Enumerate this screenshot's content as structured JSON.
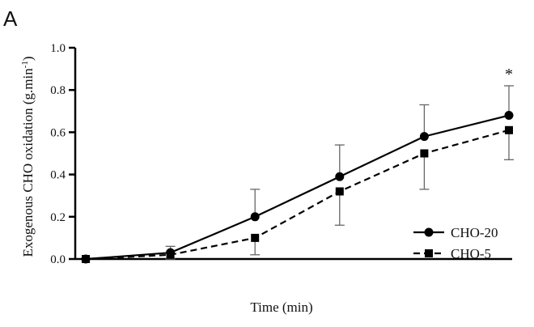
{
  "panel_label": "A",
  "chart_data": {
    "type": "line",
    "xlabel": "Time (min)",
    "ylabel_main": "Exogenous CHO oxidation (g.min",
    "ylabel_sup": "-1",
    "ylabel_tail": ")",
    "ylim": [
      0,
      1.0
    ],
    "yticks": [
      "0.0",
      "0.2",
      "0.4",
      "0.6",
      "0.8",
      "1.0"
    ],
    "x": [
      0,
      1,
      2,
      3,
      4,
      5
    ],
    "series": [
      {
        "name": "CHO-20",
        "marker": "circle",
        "linestyle": "solid",
        "color": "#000000",
        "values": [
          0.0,
          0.03,
          0.2,
          0.39,
          0.58,
          0.68
        ],
        "error_upper": [
          0.0,
          0.06,
          0.33,
          0.54,
          0.73,
          0.82
        ],
        "error_lower": [
          0.0,
          0.03,
          0.2,
          0.39,
          0.58,
          0.68
        ]
      },
      {
        "name": "CHO-5",
        "marker": "square",
        "linestyle": "dashed",
        "color": "#000000",
        "values": [
          0.0,
          0.02,
          0.1,
          0.32,
          0.5,
          0.61
        ],
        "error_upper": [
          0.0,
          0.02,
          0.1,
          0.32,
          0.5,
          0.61
        ],
        "error_lower": [
          0.0,
          0.0,
          0.02,
          0.16,
          0.33,
          0.47
        ]
      }
    ],
    "annotations": [
      {
        "text": "*",
        "x": 5,
        "y": 0.82
      }
    ],
    "legend_position": "right"
  }
}
